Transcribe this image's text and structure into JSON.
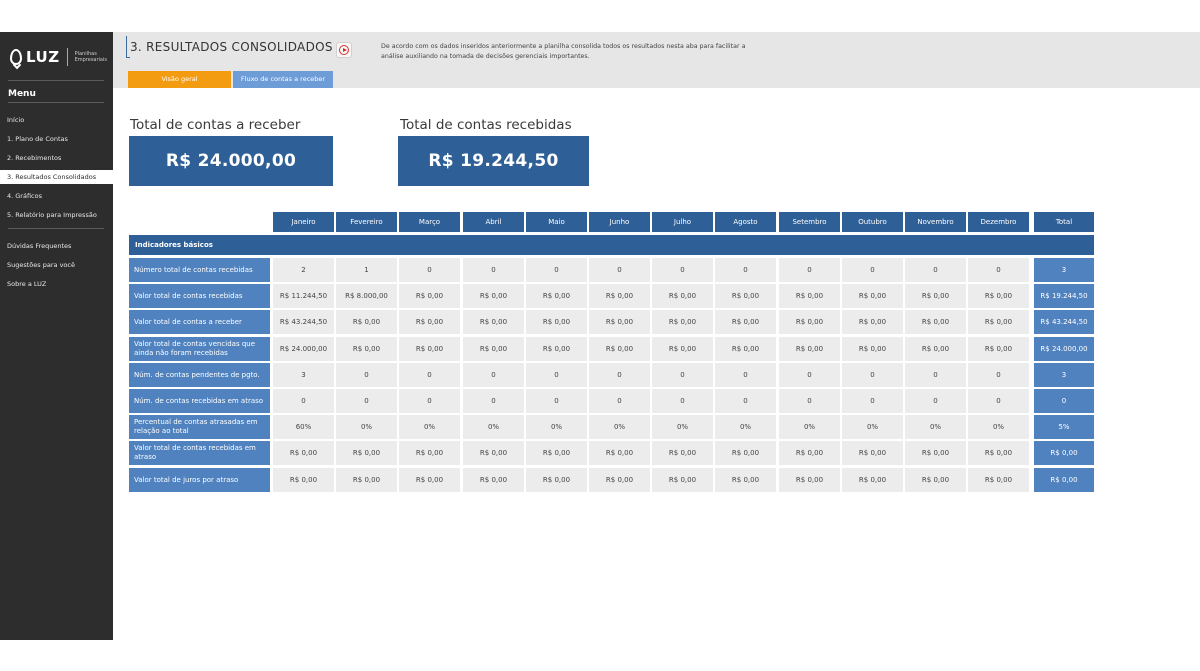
{
  "app": {
    "logo_text": "LUZ",
    "logo_tagline": "Planilhas Empresariais"
  },
  "sidebar": {
    "menu_title": "Menu",
    "items": [
      {
        "label": "Início",
        "active": false
      },
      {
        "label": "1. Plano de Contas",
        "active": false
      },
      {
        "label": "2. Recebimentos",
        "active": false
      },
      {
        "label": "3. Resultados Consolidados",
        "active": true
      },
      {
        "label": "4. Gráficos",
        "active": false
      },
      {
        "label": "5. Relatório para Impressão",
        "active": false
      }
    ],
    "extra_items": [
      {
        "label": "Dúvidas Frequentes"
      },
      {
        "label": "Sugestões para você"
      },
      {
        "label": "Sobre a LUZ"
      }
    ]
  },
  "header": {
    "title": "3. RESULTADOS CONSOLIDADOS",
    "description": "De acordo com os dados inseridos anteriormente a planilha consolida todos os resultados nesta aba para facilitar a análise auxiliando na tomada de decisões gerenciais importantes.",
    "play_icon": "play-circle-icon",
    "tabs": [
      {
        "label": "Visão geral"
      },
      {
        "label": "Fluxo de contas a receber"
      }
    ]
  },
  "summary": {
    "receivable_label": "Total de contas a receber",
    "receivable_value": "R$ 24.000,00",
    "received_label": "Total de contas recebidas",
    "received_value": "R$ 19.244,50"
  },
  "table": {
    "months": [
      "Janeiro",
      "Fevereiro",
      "Março",
      "Abril",
      "Maio",
      "Junho",
      "Julho",
      "Agosto",
      "Setembro",
      "Outubro",
      "Novembro",
      "Dezembro"
    ],
    "total_header": "Total",
    "section_label": "Indicadores básicos",
    "rows": [
      {
        "label": "Número total de contas recebidas",
        "values": [
          "2",
          "1",
          "0",
          "0",
          "0",
          "0",
          "0",
          "0",
          "0",
          "0",
          "0",
          "0"
        ],
        "total": "3"
      },
      {
        "label": "Valor total de contas recebidas",
        "values": [
          "R$ 11.244,50",
          "R$ 8.000,00",
          "R$ 0,00",
          "R$ 0,00",
          "R$ 0,00",
          "R$ 0,00",
          "R$ 0,00",
          "R$ 0,00",
          "R$ 0,00",
          "R$ 0,00",
          "R$ 0,00",
          "R$ 0,00"
        ],
        "total": "R$ 19.244,50"
      },
      {
        "label": "Valor total de contas a receber",
        "values": [
          "R$ 43.244,50",
          "R$ 0,00",
          "R$ 0,00",
          "R$ 0,00",
          "R$ 0,00",
          "R$ 0,00",
          "R$ 0,00",
          "R$ 0,00",
          "R$ 0,00",
          "R$ 0,00",
          "R$ 0,00",
          "R$ 0,00"
        ],
        "total": "R$ 43.244,50"
      },
      {
        "label": "Valor total de contas vencidas que ainda não foram recebidas",
        "values": [
          "R$ 24.000,00",
          "R$ 0,00",
          "R$ 0,00",
          "R$ 0,00",
          "R$ 0,00",
          "R$ 0,00",
          "R$ 0,00",
          "R$ 0,00",
          "R$ 0,00",
          "R$ 0,00",
          "R$ 0,00",
          "R$ 0,00"
        ],
        "total": "R$ 24.000,00"
      },
      {
        "label": "Núm. de contas pendentes de pgto.",
        "values": [
          "3",
          "0",
          "0",
          "0",
          "0",
          "0",
          "0",
          "0",
          "0",
          "0",
          "0",
          "0"
        ],
        "total": "3"
      },
      {
        "label": "Núm. de contas recebidas em atraso",
        "values": [
          "0",
          "0",
          "0",
          "0",
          "0",
          "0",
          "0",
          "0",
          "0",
          "0",
          "0",
          "0"
        ],
        "total": "0"
      },
      {
        "label": "Percentual de contas atrasadas em relação ao total",
        "values": [
          "60%",
          "0%",
          "0%",
          "0%",
          "0%",
          "0%",
          "0%",
          "0%",
          "0%",
          "0%",
          "0%",
          "0%"
        ],
        "total": "5%"
      },
      {
        "label": "Valor total de contas recebidas em atraso",
        "values": [
          "R$ 0,00",
          "R$ 0,00",
          "R$ 0,00",
          "R$ 0,00",
          "R$ 0,00",
          "R$ 0,00",
          "R$ 0,00",
          "R$ 0,00",
          "R$ 0,00",
          "R$ 0,00",
          "R$ 0,00",
          "R$ 0,00"
        ],
        "total": "R$ 0,00"
      },
      {
        "label": "Valor total de juros por atraso",
        "values": [
          "R$ 0,00",
          "R$ 0,00",
          "R$ 0,00",
          "R$ 0,00",
          "R$ 0,00",
          "R$ 0,00",
          "R$ 0,00",
          "R$ 0,00",
          "R$ 0,00",
          "R$ 0,00",
          "R$ 0,00",
          "R$ 0,00"
        ],
        "total": "R$ 0,00"
      }
    ]
  },
  "colors": {
    "sidebar_bg": "#2d2d2d",
    "primary_blue": "#2e5f96",
    "light_blue": "#4f82bf",
    "tab_orange": "#f39c12",
    "tab_blue": "#6d9cd6",
    "cell_gray": "#ececec"
  }
}
